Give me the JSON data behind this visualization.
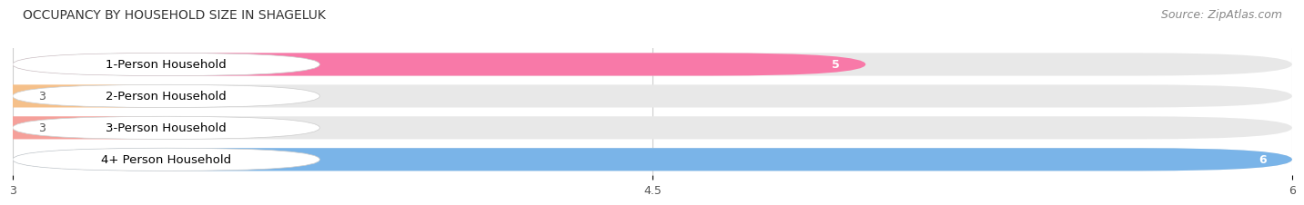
{
  "title": "OCCUPANCY BY HOUSEHOLD SIZE IN SHAGELUK",
  "source": "Source: ZipAtlas.com",
  "categories": [
    "1-Person Household",
    "2-Person Household",
    "3-Person Household",
    "4+ Person Household"
  ],
  "values": [
    5,
    3,
    3,
    6
  ],
  "bar_colors": [
    "#f879a8",
    "#f5c08a",
    "#f5a09a",
    "#7ab4e8"
  ],
  "label_colors": [
    "white",
    "black",
    "black",
    "white"
  ],
  "xlim": [
    3,
    6
  ],
  "xticks": [
    3,
    4.5,
    6
  ],
  "bar_height": 0.72,
  "background_color": "#ffffff",
  "plot_background": "#ffffff",
  "track_color": "#e8e8e8",
  "title_fontsize": 10,
  "source_fontsize": 9,
  "label_fontsize": 9.5,
  "value_fontsize": 9
}
